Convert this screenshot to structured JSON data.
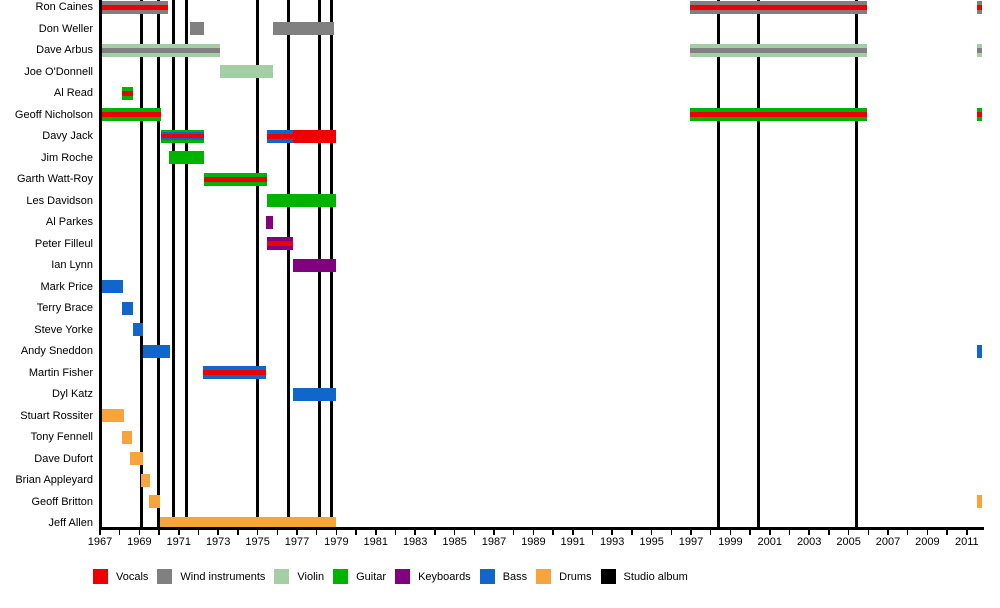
{
  "chart_data": {
    "type": "timeline",
    "description": "Band members timeline with instrument roles and studio album release lines",
    "x_axis": {
      "start": 1967,
      "end": 2011.75,
      "labels": [
        1967,
        1969,
        1971,
        1973,
        1975,
        1977,
        1979,
        1981,
        1983,
        1985,
        1987,
        1989,
        1991,
        1993,
        1995,
        1997,
        1999,
        2001,
        2003,
        2005,
        2007,
        2009,
        2011
      ],
      "minor_tick_every_years": 1
    },
    "colors": {
      "vocals": "#ee0000",
      "wind": "#808080",
      "violin": "#a4cfa4",
      "guitar": "#00b300",
      "keyboards": "#800080",
      "bass": "#1166cc",
      "drums": "#f8a43c",
      "album": "#000000"
    },
    "legend": [
      {
        "label": "Vocals",
        "color": "vocals"
      },
      {
        "label": "Wind instruments",
        "color": "wind"
      },
      {
        "label": "Violin",
        "color": "violin"
      },
      {
        "label": "Guitar",
        "color": "guitar"
      },
      {
        "label": "Keyboards",
        "color": "keyboards"
      },
      {
        "label": "Bass",
        "color": "bass"
      },
      {
        "label": "Drums",
        "color": "drums"
      },
      {
        "label": "Studio album",
        "color": "album"
      }
    ],
    "album_lines": [
      1969.13,
      1969.95,
      1970.75,
      1971.4,
      1975.0,
      1976.55,
      1978.15,
      1978.75,
      1998.4,
      2000.45,
      2005.4
    ],
    "members": [
      {
        "name": "Ron Caines",
        "bars": [
          {
            "from": 1967,
            "to": 1970.45,
            "colors": [
              "wind",
              "vocals"
            ]
          },
          {
            "from": 1996.95,
            "to": 2005.95,
            "colors": [
              "wind",
              "vocals"
            ]
          },
          {
            "from": 2011.5,
            "to": 2011.75,
            "colors": [
              "wind",
              "vocals"
            ]
          }
        ]
      },
      {
        "name": "Don Weller",
        "bars": [
          {
            "from": 1971.55,
            "to": 1972.3,
            "colors": [
              "wind"
            ]
          },
          {
            "from": 1975.8,
            "to": 1978.9,
            "colors": [
              "wind"
            ]
          }
        ]
      },
      {
        "name": "Dave Arbus",
        "bars": [
          {
            "from": 1967,
            "to": 1973.1,
            "colors": [
              "violin",
              "wind"
            ]
          },
          {
            "from": 1996.95,
            "to": 2005.95,
            "colors": [
              "violin",
              "wind"
            ]
          },
          {
            "from": 2011.5,
            "to": 2011.75,
            "colors": [
              "violin",
              "wind"
            ]
          }
        ]
      },
      {
        "name": "Joe O'Donnell",
        "bars": [
          {
            "from": 1973.1,
            "to": 1975.8,
            "colors": [
              "violin"
            ]
          }
        ]
      },
      {
        "name": "Al Read",
        "bars": [
          {
            "from": 1968.1,
            "to": 1968.7,
            "colors": [
              "guitar",
              "vocals"
            ]
          }
        ]
      },
      {
        "name": "Geoff Nicholson",
        "bars": [
          {
            "from": 1967,
            "to": 1970.1,
            "colors": [
              "guitar",
              "vocals"
            ]
          },
          {
            "from": 1996.95,
            "to": 2005.95,
            "colors": [
              "guitar",
              "vocals"
            ]
          },
          {
            "from": 2011.5,
            "to": 2011.75,
            "colors": [
              "guitar",
              "vocals"
            ]
          }
        ]
      },
      {
        "name": "Davy Jack",
        "bars": [
          {
            "from": 1970.1,
            "to": 1972.3,
            "colors": [
              "guitar",
              "bass",
              "vocals"
            ]
          },
          {
            "from": 1975.5,
            "to": 1976.8,
            "colors": [
              "bass",
              "vocals"
            ]
          },
          {
            "from": 1976.8,
            "to": 1979,
            "colors": [
              "vocals"
            ]
          }
        ]
      },
      {
        "name": "Jim Roche",
        "bars": [
          {
            "from": 1970.5,
            "to": 1972.3,
            "colors": [
              "guitar"
            ]
          }
        ]
      },
      {
        "name": "Garth Watt-Roy",
        "bars": [
          {
            "from": 1972.3,
            "to": 1975.5,
            "colors": [
              "guitar",
              "vocals"
            ]
          }
        ]
      },
      {
        "name": "Les Davidson",
        "bars": [
          {
            "from": 1975.5,
            "to": 1979,
            "colors": [
              "guitar"
            ]
          }
        ]
      },
      {
        "name": "Al Parkes",
        "bars": [
          {
            "from": 1975.45,
            "to": 1975.8,
            "colors": [
              "keyboards"
            ]
          }
        ]
      },
      {
        "name": "Peter Filleul",
        "bars": [
          {
            "from": 1975.5,
            "to": 1976.8,
            "colors": [
              "keyboards",
              "vocals"
            ]
          }
        ]
      },
      {
        "name": "Ian Lynn",
        "bars": [
          {
            "from": 1976.8,
            "to": 1979,
            "colors": [
              "keyboards"
            ]
          }
        ]
      },
      {
        "name": "Mark Price",
        "bars": [
          {
            "from": 1967,
            "to": 1968.15,
            "colors": [
              "bass"
            ]
          }
        ]
      },
      {
        "name": "Terry Brace",
        "bars": [
          {
            "from": 1968.1,
            "to": 1968.7,
            "colors": [
              "bass"
            ]
          }
        ]
      },
      {
        "name": "Steve Yorke",
        "bars": [
          {
            "from": 1968.7,
            "to": 1969.2,
            "colors": [
              "bass"
            ]
          }
        ]
      },
      {
        "name": "Andy Sneddon",
        "bars": [
          {
            "from": 1969.2,
            "to": 1970.55,
            "colors": [
              "bass"
            ]
          },
          {
            "from": 2011.5,
            "to": 2011.75,
            "colors": [
              "bass"
            ]
          }
        ]
      },
      {
        "name": "Martin Fisher",
        "bars": [
          {
            "from": 1972.25,
            "to": 1975.45,
            "colors": [
              "bass",
              "vocals"
            ]
          }
        ]
      },
      {
        "name": "Dyl Katz",
        "bars": [
          {
            "from": 1976.8,
            "to": 1979,
            "colors": [
              "bass"
            ]
          }
        ]
      },
      {
        "name": "Stuart Rossiter",
        "bars": [
          {
            "from": 1967.05,
            "to": 1968.2,
            "colors": [
              "drums"
            ]
          }
        ]
      },
      {
        "name": "Tony Fennell",
        "bars": [
          {
            "from": 1968.1,
            "to": 1968.6,
            "colors": [
              "drums"
            ]
          }
        ]
      },
      {
        "name": "Dave Dufort",
        "bars": [
          {
            "from": 1968.5,
            "to": 1969.2,
            "colors": [
              "drums"
            ]
          }
        ]
      },
      {
        "name": "Brian Appleyard",
        "bars": [
          {
            "from": 1969.1,
            "to": 1969.55,
            "colors": [
              "drums"
            ]
          }
        ]
      },
      {
        "name": "Geoff Britton",
        "bars": [
          {
            "from": 1969.5,
            "to": 1970.05,
            "colors": [
              "drums"
            ]
          },
          {
            "from": 2011.5,
            "to": 2011.75,
            "colors": [
              "drums"
            ]
          }
        ]
      },
      {
        "name": "Jeff Allen",
        "bars": [
          {
            "from": 1970.05,
            "to": 1979,
            "colors": [
              "drums"
            ]
          }
        ]
      }
    ]
  }
}
